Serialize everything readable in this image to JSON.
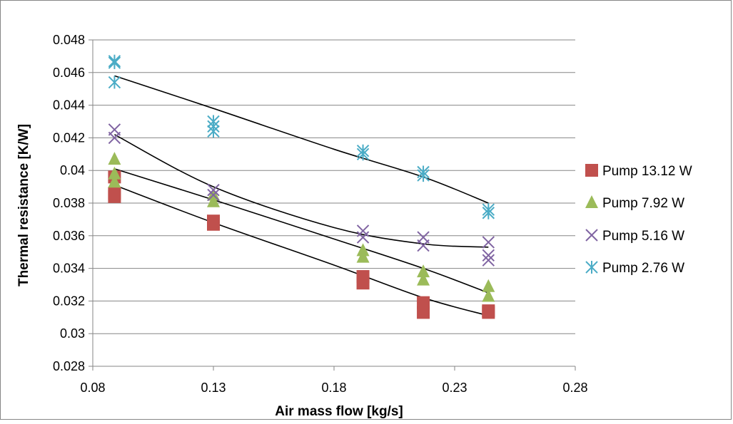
{
  "chart_data": {
    "type": "scatter",
    "xlabel": "Air mass flow [kg/s]",
    "ylabel": "Thermal resistance [K/W]",
    "xlim": [
      0.08,
      0.28
    ],
    "ylim": [
      0.028,
      0.048
    ],
    "x_ticks": [
      0.08,
      0.13,
      0.18,
      0.23,
      0.28
    ],
    "x_tick_labels": [
      "0.08",
      "0.13",
      "0.18",
      "0.23",
      "0.28"
    ],
    "y_ticks": [
      0.028,
      0.03,
      0.032,
      0.034,
      0.036,
      0.038,
      0.04,
      0.042,
      0.044,
      0.046,
      0.048
    ],
    "y_tick_labels": [
      "0.028",
      "0.03",
      "0.032",
      "0.034",
      "0.036",
      "0.038",
      "0.04",
      "0.042",
      "0.044",
      "0.046",
      "0.048"
    ],
    "grid": "horizontal",
    "legend_position": "right",
    "series": [
      {
        "name": "Pump 13.12 W",
        "marker": "square",
        "color": "#C0504D",
        "points": [
          [
            0.089,
            0.0384
          ],
          [
            0.089,
            0.0386
          ],
          [
            0.089,
            0.0396
          ],
          [
            0.13,
            0.0367
          ],
          [
            0.13,
            0.0369
          ],
          [
            0.192,
            0.0331
          ],
          [
            0.192,
            0.0335
          ],
          [
            0.217,
            0.0313
          ],
          [
            0.217,
            0.0319
          ],
          [
            0.244,
            0.0313
          ],
          [
            0.244,
            0.0314
          ]
        ],
        "trend": [
          [
            0.089,
            0.0391
          ],
          [
            0.13,
            0.0368
          ],
          [
            0.18,
            0.0342
          ],
          [
            0.217,
            0.0322
          ],
          [
            0.244,
            0.0311
          ]
        ]
      },
      {
        "name": "Pump 7.92 W",
        "marker": "triangle",
        "color": "#9BBB59",
        "points": [
          [
            0.089,
            0.0407
          ],
          [
            0.089,
            0.0398
          ],
          [
            0.089,
            0.0393
          ],
          [
            0.13,
            0.0385
          ],
          [
            0.13,
            0.0381
          ],
          [
            0.192,
            0.0351
          ],
          [
            0.192,
            0.0347
          ],
          [
            0.217,
            0.0338
          ],
          [
            0.217,
            0.0333
          ],
          [
            0.244,
            0.0329
          ],
          [
            0.244,
            0.0323
          ]
        ],
        "trend": [
          [
            0.089,
            0.0401
          ],
          [
            0.13,
            0.0382
          ],
          [
            0.18,
            0.0358
          ],
          [
            0.217,
            0.034
          ],
          [
            0.244,
            0.0325
          ]
        ]
      },
      {
        "name": "Pump 5.16 W",
        "marker": "x",
        "color": "#8064A2",
        "points": [
          [
            0.089,
            0.0425
          ],
          [
            0.089,
            0.042
          ],
          [
            0.13,
            0.0388
          ],
          [
            0.13,
            0.0385
          ],
          [
            0.192,
            0.0363
          ],
          [
            0.192,
            0.0359
          ],
          [
            0.217,
            0.0359
          ],
          [
            0.217,
            0.0354
          ],
          [
            0.244,
            0.0356
          ],
          [
            0.244,
            0.0348
          ],
          [
            0.244,
            0.0345
          ]
        ],
        "trend": [
          [
            0.089,
            0.0422
          ],
          [
            0.13,
            0.039
          ],
          [
            0.18,
            0.0365
          ],
          [
            0.217,
            0.0355
          ],
          [
            0.244,
            0.0353
          ]
        ]
      },
      {
        "name": "Pump 2.76 W",
        "marker": "asterisk",
        "color": "#4BACC6",
        "points": [
          [
            0.089,
            0.0467
          ],
          [
            0.089,
            0.0466
          ],
          [
            0.089,
            0.0454
          ],
          [
            0.13,
            0.043
          ],
          [
            0.13,
            0.0427
          ],
          [
            0.13,
            0.0424
          ],
          [
            0.192,
            0.0412
          ],
          [
            0.192,
            0.041
          ],
          [
            0.217,
            0.0399
          ],
          [
            0.217,
            0.0397
          ],
          [
            0.244,
            0.0376
          ],
          [
            0.244,
            0.0374
          ]
        ],
        "trend": [
          [
            0.089,
            0.0458
          ],
          [
            0.13,
            0.0438
          ],
          [
            0.18,
            0.0413
          ],
          [
            0.217,
            0.0396
          ],
          [
            0.244,
            0.038
          ]
        ]
      }
    ]
  }
}
